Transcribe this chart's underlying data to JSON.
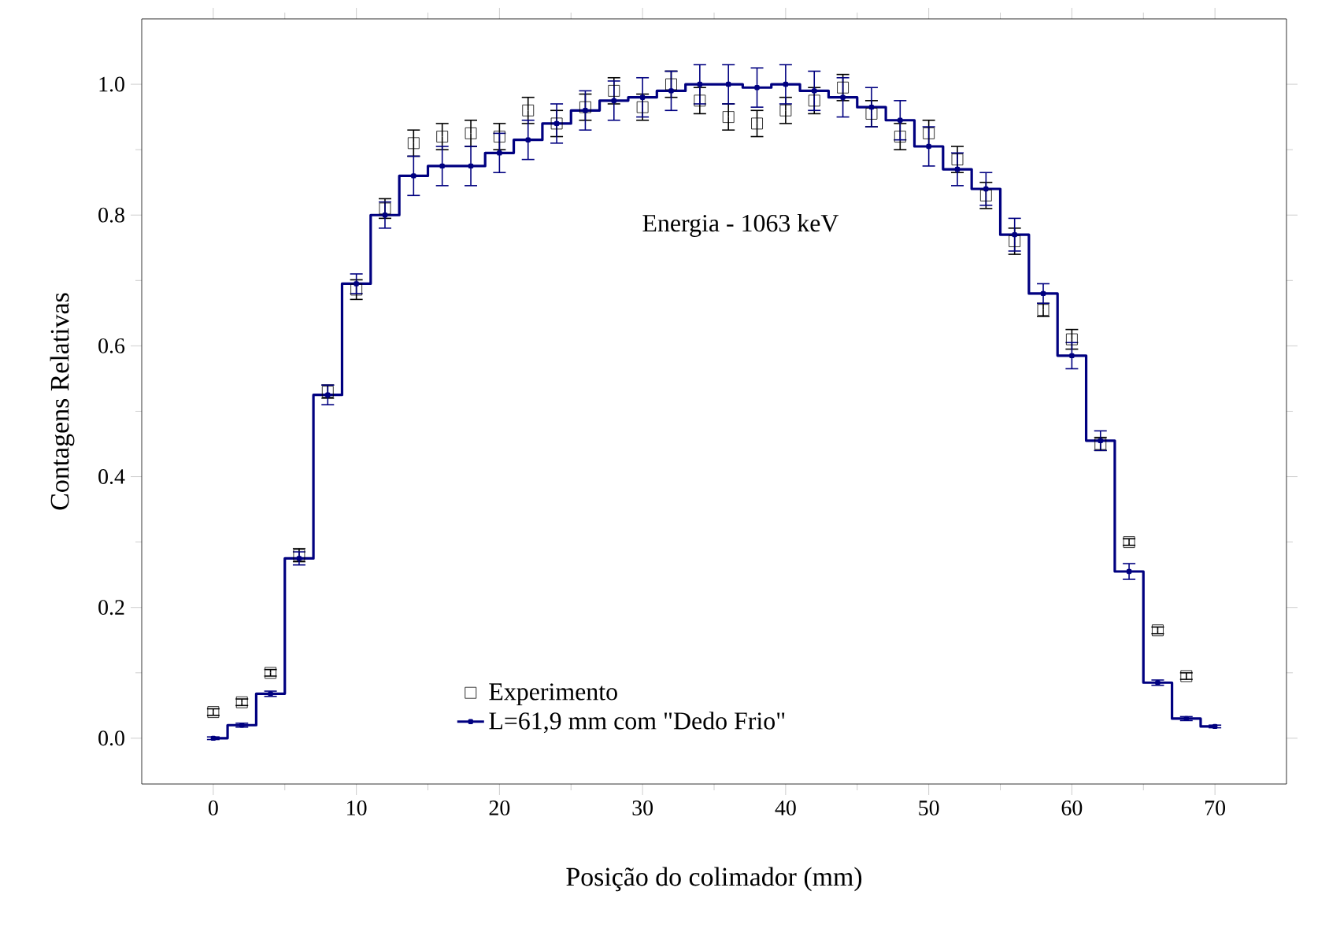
{
  "chart_data": {
    "type": "scatter",
    "xlabel": "Posição do colimador (mm)",
    "ylabel": "Contagens Relativas",
    "annotations": [
      "Energia - 1063 keV"
    ],
    "xlim": [
      -5,
      75
    ],
    "ylim": [
      -0.07,
      1.1
    ],
    "xticks": [
      0,
      10,
      20,
      30,
      40,
      50,
      60,
      70
    ],
    "yticks": [
      {
        "value": 0,
        "label": "0.0"
      },
      {
        "value": 0.2,
        "label": "0.2"
      },
      {
        "value": 0.4,
        "label": "0.4"
      },
      {
        "value": 0.6,
        "label": "0.6"
      },
      {
        "value": 0.8,
        "label": "0.8"
      },
      {
        "value": 1.0,
        "label": "1.0"
      }
    ],
    "legend": "bottom",
    "series": [
      {
        "name": "Experimento",
        "marker": "square",
        "color": "#000000",
        "x": [
          0,
          2,
          4,
          6,
          8,
          10,
          12,
          14,
          16,
          18,
          20,
          22,
          24,
          26,
          28,
          30,
          32,
          34,
          36,
          38,
          40,
          42,
          44,
          46,
          48,
          50,
          52,
          54,
          56,
          58,
          60,
          62,
          64,
          66,
          68
        ],
        "values": [
          0.04,
          0.055,
          0.1,
          0.28,
          0.53,
          0.686,
          0.81,
          0.91,
          0.92,
          0.925,
          0.92,
          0.96,
          0.94,
          0.965,
          0.99,
          0.965,
          1.0,
          0.975,
          0.95,
          0.94,
          0.96,
          0.975,
          0.995,
          0.955,
          0.92,
          0.925,
          0.885,
          0.83,
          0.76,
          0.655,
          0.61,
          0.45,
          0.3,
          0.165,
          0.095
        ],
        "errors": [
          0.005,
          0.005,
          0.005,
          0.01,
          0.01,
          0.015,
          0.015,
          0.02,
          0.02,
          0.02,
          0.02,
          0.02,
          0.02,
          0.02,
          0.02,
          0.02,
          0.02,
          0.02,
          0.02,
          0.02,
          0.02,
          0.02,
          0.02,
          0.02,
          0.02,
          0.02,
          0.02,
          0.02,
          0.02,
          0.01,
          0.015,
          0.01,
          0.005,
          0.005,
          0.005
        ]
      },
      {
        "name": "L=61,9 mm com \"Dedo Frio\"",
        "type": "step",
        "marker": "square",
        "color": "#000080",
        "x": [
          0,
          2,
          4,
          6,
          8,
          10,
          12,
          14,
          16,
          18,
          20,
          22,
          24,
          26,
          28,
          30,
          32,
          34,
          36,
          38,
          40,
          42,
          44,
          46,
          48,
          50,
          52,
          54,
          56,
          58,
          60,
          62,
          64,
          66,
          68,
          70
        ],
        "values": [
          0.0,
          0.02,
          0.068,
          0.275,
          0.525,
          0.695,
          0.8,
          0.86,
          0.875,
          0.875,
          0.895,
          0.915,
          0.94,
          0.96,
          0.975,
          0.98,
          0.99,
          1.0,
          1.0,
          0.995,
          1.0,
          0.99,
          0.98,
          0.965,
          0.945,
          0.905,
          0.87,
          0.84,
          0.77,
          0.68,
          0.585,
          0.455,
          0.255,
          0.085,
          0.03,
          0.018
        ],
        "errors": [
          0.002,
          0.003,
          0.004,
          0.01,
          0.015,
          0.015,
          0.02,
          0.03,
          0.03,
          0.03,
          0.03,
          0.03,
          0.03,
          0.03,
          0.03,
          0.03,
          0.03,
          0.03,
          0.03,
          0.03,
          0.03,
          0.03,
          0.03,
          0.03,
          0.03,
          0.03,
          0.025,
          0.025,
          0.025,
          0.015,
          0.02,
          0.015,
          0.012,
          0.004,
          0.003,
          0.002
        ]
      }
    ]
  }
}
